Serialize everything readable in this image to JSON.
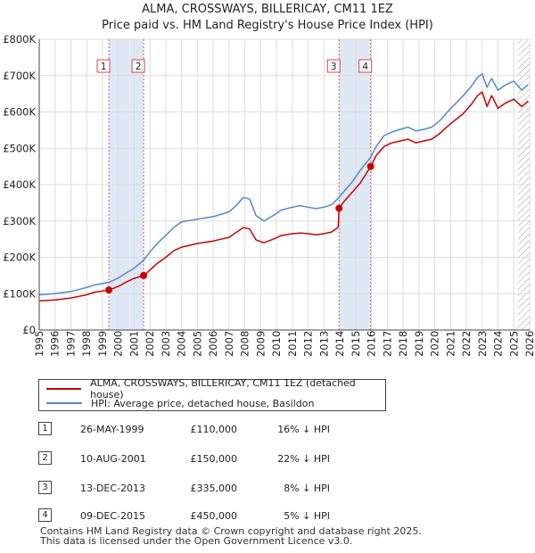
{
  "title_line1": "ALMA, CROSSWAYS, BILLERICAY, CM11 1EZ",
  "title_line2": "Price paid vs. HM Land Registry's House Price Index (HPI)",
  "chart_data": {
    "type": "line",
    "title": "ALMA, CROSSWAYS, BILLERICAY, CM11 1EZ — Price paid vs. HM Land Registry's House Price Index (HPI)",
    "xlabel": "",
    "ylabel": "",
    "xlim": [
      1995.0,
      2026.0
    ],
    "ylim": [
      0,
      800000
    ],
    "y_ticks": [
      0,
      100000,
      200000,
      300000,
      400000,
      500000,
      600000,
      700000,
      800000
    ],
    "y_tick_labels": [
      "£0",
      "£100K",
      "£200K",
      "£300K",
      "£400K",
      "£500K",
      "£600K",
      "£700K",
      "£800K"
    ],
    "x_ticks": [
      1995,
      1996,
      1997,
      1998,
      1999,
      2000,
      2001,
      2002,
      2003,
      2004,
      2005,
      2006,
      2007,
      2008,
      2009,
      2010,
      2011,
      2012,
      2013,
      2014,
      2015,
      2016,
      2017,
      2018,
      2019,
      2020,
      2021,
      2022,
      2023,
      2024,
      2025,
      2026
    ],
    "x_tick_labels": [
      "1995",
      "1996",
      "1997",
      "1998",
      "1999",
      "2000",
      "2001",
      "2002",
      "2003",
      "2004",
      "2005",
      "2006",
      "2007",
      "2008",
      "2009",
      "2010",
      "2011",
      "2012",
      "2013",
      "2014",
      "2015",
      "2016",
      "2017",
      "2018",
      "2019",
      "2020",
      "2021",
      "2022",
      "2023",
      "2024",
      "2025",
      "2026"
    ],
    "grid": true,
    "shaded_spans": [
      [
        1999.4,
        2001.6
      ],
      [
        2013.95,
        2015.95
      ]
    ],
    "future_hatch_from": 2025.25,
    "series": [
      {
        "name": "ALMA, CROSSWAYS, BILLERICAY, CM11 1EZ (detached house)",
        "color": "#cc0000",
        "x": [
          1995.0,
          1996.0,
          1997.0,
          1998.0,
          1998.5,
          1999.4,
          2000.0,
          2000.5,
          2001.0,
          2001.6,
          2002.0,
          2002.5,
          2003.0,
          2003.5,
          2004.0,
          2005.0,
          2006.0,
          2007.0,
          2007.5,
          2007.9,
          2008.3,
          2008.7,
          2009.2,
          2009.8,
          2010.3,
          2011.0,
          2011.5,
          2012.0,
          2012.5,
          2013.0,
          2013.5,
          2013.9,
          2013.95,
          2014.3,
          2014.8,
          2015.3,
          2015.95,
          2016.3,
          2016.8,
          2017.3,
          2017.8,
          2018.3,
          2018.8,
          2019.3,
          2019.8,
          2020.3,
          2020.8,
          2021.3,
          2021.8,
          2022.3,
          2022.7,
          2023.0,
          2023.3,
          2023.6,
          2024.0,
          2024.5,
          2025.0,
          2025.5,
          2025.9
        ],
        "values": [
          80000,
          83000,
          88000,
          97000,
          104000,
          110000,
          120000,
          132000,
          142000,
          150000,
          165000,
          185000,
          200000,
          218000,
          228000,
          238000,
          245000,
          255000,
          270000,
          282000,
          278000,
          248000,
          240000,
          250000,
          260000,
          265000,
          267000,
          265000,
          262000,
          265000,
          270000,
          283000,
          335000,
          355000,
          380000,
          405000,
          450000,
          480000,
          505000,
          515000,
          520000,
          525000,
          515000,
          520000,
          525000,
          540000,
          560000,
          578000,
          595000,
          620000,
          645000,
          655000,
          615000,
          645000,
          610000,
          625000,
          635000,
          615000,
          630000
        ]
      },
      {
        "name": "HPI: Average price, detached house, Basildon",
        "color": "#5588cc",
        "x": [
          1995.0,
          1996.0,
          1997.0,
          1998.0,
          1998.5,
          1999.4,
          2000.0,
          2000.5,
          2001.0,
          2001.6,
          2002.0,
          2002.5,
          2003.0,
          2003.5,
          2004.0,
          2005.0,
          2006.0,
          2007.0,
          2007.5,
          2007.9,
          2008.3,
          2008.7,
          2009.2,
          2009.8,
          2010.3,
          2011.0,
          2011.5,
          2012.0,
          2012.5,
          2013.0,
          2013.5,
          2013.95,
          2014.3,
          2014.8,
          2015.3,
          2015.95,
          2016.3,
          2016.8,
          2017.3,
          2017.8,
          2018.3,
          2018.8,
          2019.3,
          2019.8,
          2020.3,
          2020.8,
          2021.3,
          2021.8,
          2022.3,
          2022.7,
          2023.0,
          2023.3,
          2023.6,
          2024.0,
          2024.5,
          2025.0,
          2025.5,
          2025.9
        ],
        "values": [
          97000,
          100000,
          106000,
          117000,
          124000,
          131000,
          143000,
          157000,
          170000,
          192000,
          215000,
          240000,
          260000,
          282000,
          298000,
          305000,
          312000,
          325000,
          345000,
          365000,
          360000,
          315000,
          300000,
          315000,
          330000,
          338000,
          342000,
          338000,
          334000,
          338000,
          345000,
          365000,
          383000,
          408000,
          440000,
          475000,
          505000,
          535000,
          545000,
          552000,
          558000,
          548000,
          552000,
          558000,
          575000,
          600000,
          622000,
          645000,
          670000,
          695000,
          705000,
          668000,
          692000,
          660000,
          675000,
          685000,
          660000,
          675000
        ]
      }
    ],
    "sales": [
      {
        "marker": "1",
        "x": 1999.4,
        "value": 110000
      },
      {
        "marker": "2",
        "x": 2001.6,
        "value": 150000
      },
      {
        "marker": "3",
        "x": 2013.95,
        "value": 335000
      },
      {
        "marker": "4",
        "x": 2015.95,
        "value": 450000
      }
    ]
  },
  "legend": {
    "items": [
      {
        "label": "ALMA, CROSSWAYS, BILLERICAY, CM11 1EZ (detached house)",
        "color": "#cc0000"
      },
      {
        "label": "HPI: Average price, detached house, Basildon",
        "color": "#5588cc"
      }
    ]
  },
  "transactions": [
    {
      "num": "1",
      "date": "26-MAY-1999",
      "price": "£110,000",
      "hpi": "16% ↓ HPI"
    },
    {
      "num": "2",
      "date": "10-AUG-2001",
      "price": "£150,000",
      "hpi": "22% ↓ HPI"
    },
    {
      "num": "3",
      "date": "13-DEC-2013",
      "price": "£335,000",
      "hpi": "8% ↓ HPI"
    },
    {
      "num": "4",
      "date": "09-DEC-2015",
      "price": "£450,000",
      "hpi": "5% ↓ HPI"
    }
  ],
  "footer": {
    "line1": "Contains HM Land Registry data © Crown copyright and database right 2025.",
    "line2": "This data is licensed under the Open Government Licence v3.0."
  }
}
